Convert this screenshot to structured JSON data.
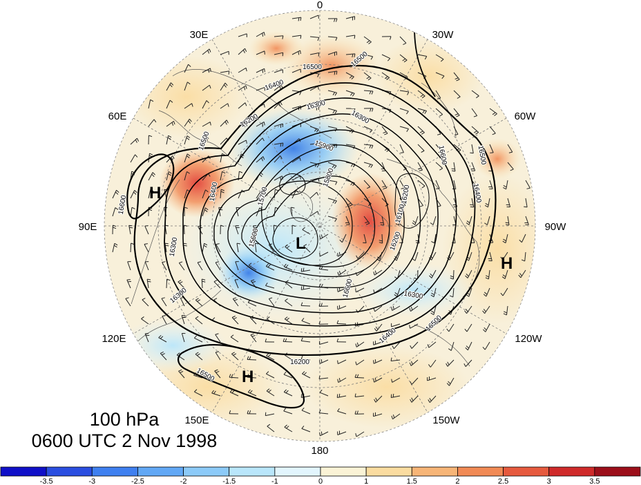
{
  "title": {
    "level": "100 hPa",
    "time": "0600 UTC 2 Nov 1998"
  },
  "longitude_labels": [
    "0",
    "30W",
    "60W",
    "90W",
    "120W",
    "150W",
    "180",
    "150E",
    "120E",
    "90E",
    "60E",
    "30E"
  ],
  "pressure_centers": [
    {
      "label": "H",
      "where": "near 75E"
    },
    {
      "label": "L",
      "where": "pole"
    },
    {
      "label": "H",
      "where": "near 165E"
    },
    {
      "label": "H",
      "where": "near 100W"
    }
  ],
  "contour_labels": [
    "16500",
    "16500",
    "16400",
    "16300",
    "16300",
    "16200",
    "15900",
    "15800",
    "15700",
    "15600",
    "16600",
    "16500",
    "16400",
    "16300",
    "16200",
    "16100",
    "16200",
    "16300",
    "16400",
    "16500",
    "16600",
    "16500",
    "16400",
    "16300",
    "16200",
    "16500",
    "16600"
  ],
  "colorbar": {
    "labels": [
      "-3.5",
      "-3",
      "-2.5",
      "-2",
      "-1.5",
      "-1",
      "0",
      "1",
      "1.5",
      "2",
      "2.5",
      "3",
      "3.5"
    ],
    "colors": [
      "#1010c8",
      "#2a4ee0",
      "#3f80f0",
      "#62a8f5",
      "#8ccaf8",
      "#b9e6fb",
      "#e2f5fd",
      "#fbf3d6",
      "#fbdca0",
      "#f7b577",
      "#f18a55",
      "#e65a3e",
      "#cf2a2a",
      "#9c0f1a"
    ]
  },
  "colors": {
    "land_base": "#f6efd9",
    "warm_anomaly": "#e8603e",
    "cold_anomaly": "#4b8fe8",
    "contour": "#000000"
  }
}
